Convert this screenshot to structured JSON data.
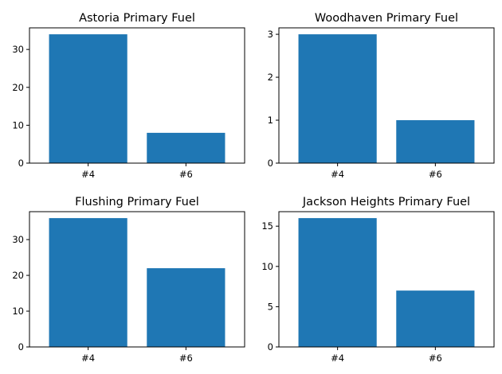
{
  "chart_data": [
    {
      "type": "bar",
      "title": "Astoria Primary Fuel",
      "categories": [
        "#4",
        "#6"
      ],
      "values": [
        34,
        8
      ],
      "ylim": [
        0,
        35.7
      ],
      "yticks": [
        0,
        10,
        20,
        30
      ],
      "color": "#1f77b4",
      "grid": false
    },
    {
      "type": "bar",
      "title": "Woodhaven Primary Fuel",
      "categories": [
        "#4",
        "#6"
      ],
      "values": [
        3,
        1
      ],
      "ylim": [
        0,
        3.15
      ],
      "yticks": [
        0,
        1,
        2,
        3
      ],
      "color": "#1f77b4",
      "grid": false
    },
    {
      "type": "bar",
      "title": "Flushing Primary Fuel",
      "categories": [
        "#4",
        "#6"
      ],
      "values": [
        36,
        22
      ],
      "ylim": [
        0,
        37.8
      ],
      "yticks": [
        0,
        10,
        20,
        30
      ],
      "color": "#1f77b4",
      "grid": false
    },
    {
      "type": "bar",
      "title": "Jackson Heights Primary Fuel",
      "categories": [
        "#4",
        "#6"
      ],
      "values": [
        16,
        7
      ],
      "ylim": [
        0,
        16.8
      ],
      "yticks": [
        0,
        5,
        10,
        15
      ],
      "color": "#1f77b4",
      "grid": false
    }
  ]
}
